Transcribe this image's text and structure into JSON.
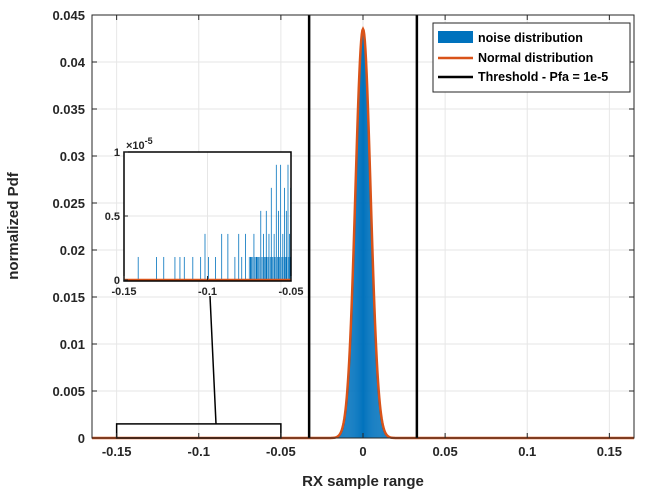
{
  "chart_data": {
    "type": "area",
    "xlabel": "RX sample range",
    "ylabel": "normalized Pdf",
    "xlim": [
      -0.165,
      0.165
    ],
    "ylim": [
      0,
      0.045
    ],
    "grid": true,
    "x_ticks": [
      "-0.15",
      "-0.1",
      "-0.05",
      "0",
      "0.05",
      "0.1",
      "0.15"
    ],
    "x_tick_values": [
      -0.15,
      -0.1,
      -0.05,
      0,
      0.05,
      0.1,
      0.15
    ],
    "y_ticks": [
      "0",
      "0.005",
      "0.01",
      "0.015",
      "0.02",
      "0.025",
      "0.03",
      "0.035",
      "0.04",
      "0.045"
    ],
    "y_tick_values": [
      0,
      0.005,
      0.01,
      0.015,
      0.02,
      0.025,
      0.03,
      0.035,
      0.04,
      0.045
    ],
    "legend_placement": "top-right",
    "series": [
      {
        "name": "noise distribution",
        "kind": "histogram",
        "color": "#0072BD",
        "peak": 0.0435,
        "sigma": 0.0046,
        "mean": 0
      },
      {
        "name": "Normal distribution",
        "kind": "line",
        "color": "#D95319",
        "peak": 0.0435,
        "sigma": 0.0046,
        "mean": 0
      },
      {
        "name": "Threshold - Pfa = 1e-5",
        "kind": "vline",
        "color": "#000000",
        "x": [
          -0.0328,
          0.0328
        ]
      }
    ],
    "zoom_region": {
      "x": [
        -0.15,
        -0.05
      ],
      "y": [
        0,
        0.0015
      ]
    },
    "inset": {
      "xlim": [
        -0.15,
        -0.05
      ],
      "ylim": [
        0,
        1e-05
      ],
      "x_ticks": [
        "-0.15",
        "-0.1",
        "-0.05"
      ],
      "x_tick_values": [
        -0.15,
        -0.1,
        -0.05
      ],
      "y_ticks": [
        "0",
        "0.5",
        "1"
      ],
      "y_tick_values": [
        0,
        0.5,
        1
      ],
      "y_exponent_label": "×10",
      "y_exponent_power": "-5",
      "spikes": [
        {
          "x": -0.1415,
          "y": 0.18
        },
        {
          "x": -0.1305,
          "y": 0.18
        },
        {
          "x": -0.1262,
          "y": 0.18
        },
        {
          "x": -0.1195,
          "y": 0.18
        },
        {
          "x": -0.1165,
          "y": 0.18
        },
        {
          "x": -0.1139,
          "y": 0.18
        },
        {
          "x": -0.1088,
          "y": 0.18
        },
        {
          "x": -0.1041,
          "y": 0.18
        },
        {
          "x": -0.1015,
          "y": 0.36
        },
        {
          "x": -0.0994,
          "y": 0.18
        },
        {
          "x": -0.0952,
          "y": 0.18
        },
        {
          "x": -0.0915,
          "y": 0.36
        },
        {
          "x": -0.0878,
          "y": 0.36
        },
        {
          "x": -0.0836,
          "y": 0.18
        },
        {
          "x": -0.0813,
          "y": 0.36
        },
        {
          "x": -0.0795,
          "y": 0.18
        },
        {
          "x": -0.0772,
          "y": 0.36
        },
        {
          "x": -0.0741,
          "y": 0.18
        },
        {
          "x": -0.0722,
          "y": 0.36
        },
        {
          "x": -0.0705,
          "y": 0.18
        },
        {
          "x": -0.0681,
          "y": 0.54
        },
        {
          "x": -0.0665,
          "y": 0.36
        },
        {
          "x": -0.0648,
          "y": 0.54
        },
        {
          "x": -0.0632,
          "y": 0.36
        },
        {
          "x": -0.0618,
          "y": 0.72
        },
        {
          "x": -0.0601,
          "y": 0.36
        },
        {
          "x": -0.0588,
          "y": 0.9
        },
        {
          "x": -0.0575,
          "y": 0.54
        },
        {
          "x": -0.0562,
          "y": 0.9
        },
        {
          "x": -0.0549,
          "y": 0.36
        },
        {
          "x": -0.0539,
          "y": 0.72
        },
        {
          "x": -0.0528,
          "y": 0.54
        },
        {
          "x": -0.0518,
          "y": 0.9
        },
        {
          "x": -0.0509,
          "y": 0.36
        },
        {
          "x": -0.0502,
          "y": 0.72
        }
      ]
    }
  }
}
